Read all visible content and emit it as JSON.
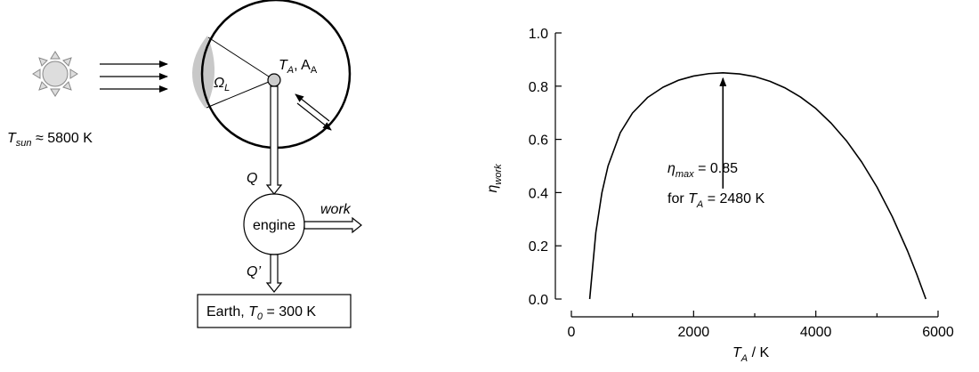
{
  "diagram": {
    "sun_label": {
      "symbol": "T",
      "sub": "sun",
      "rest": " ≈ 5800 K"
    },
    "solid_angle": {
      "symbol": "Ω",
      "sub": "L"
    },
    "absorber": {
      "symbol": "T",
      "sub": "A",
      "rest": ", A",
      "rest_sub": "A"
    },
    "heat_in": "Q",
    "engine": "engine",
    "work": "work",
    "heat_out": "Q’",
    "earth": {
      "text": "Earth, ",
      "symbol": "T",
      "sub": "0",
      "rest": " = 300 K"
    }
  },
  "chart_data": {
    "type": "line",
    "x_label": {
      "symbol": "T",
      "sub": "A",
      "rest": " / K"
    },
    "y_label": {
      "symbol": "η",
      "sub": "work"
    },
    "annotation": {
      "line1": {
        "symbol": "η",
        "sub": "max",
        "rest": " = 0.85"
      },
      "line2": {
        "text": "for ",
        "symbol": "T",
        "sub": "A",
        "rest": " = 2480 K"
      }
    },
    "x": [
      300,
      400,
      500,
      600,
      800,
      1000,
      1250,
      1500,
      1750,
      2000,
      2250,
      2480,
      2750,
      3000,
      3250,
      3500,
      3750,
      4000,
      4250,
      4500,
      4750,
      5000,
      5250,
      5500,
      5650,
      5800
    ],
    "series": [
      {
        "color": "#000000",
        "values": [
          0,
          0.25,
          0.4,
          0.5,
          0.625,
          0.699,
          0.758,
          0.796,
          0.822,
          0.838,
          0.847,
          0.85,
          0.846,
          0.836,
          0.818,
          0.793,
          0.759,
          0.716,
          0.661,
          0.595,
          0.515,
          0.421,
          0.31,
          0.181,
          0.094,
          0
        ]
      }
    ],
    "xlim": [
      0,
      6000
    ],
    "xticks": [
      0,
      2000,
      4000,
      6000
    ],
    "xminorticks": [
      1000,
      3000,
      5000
    ],
    "ylim": [
      0,
      1
    ],
    "yticks": [
      {
        "value": 0,
        "label": "0.0"
      },
      0.2,
      0.4,
      0.6,
      0.8,
      {
        "value": 1,
        "label": "1.0"
      }
    ]
  }
}
